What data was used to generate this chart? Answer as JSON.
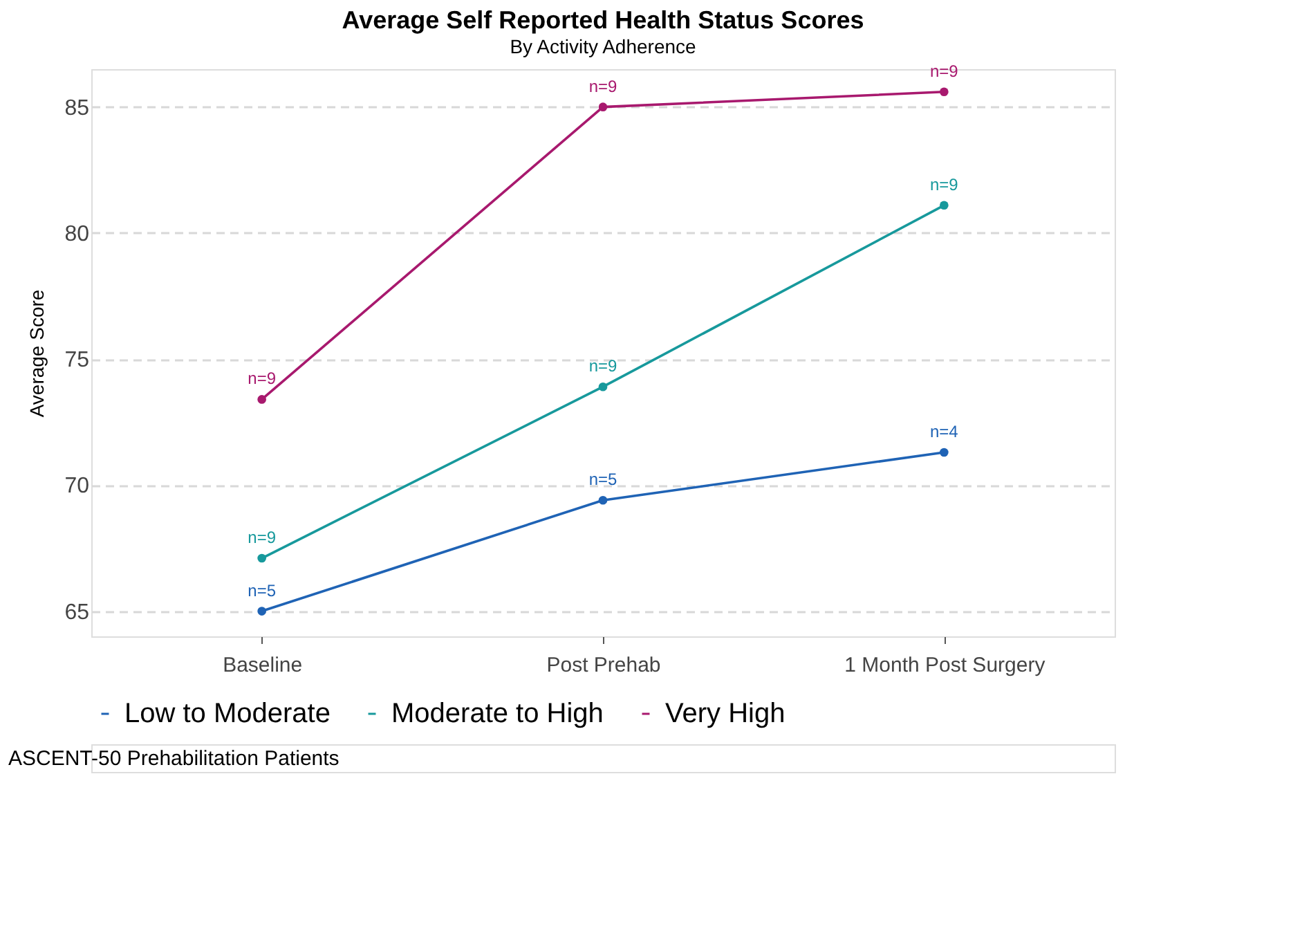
{
  "chart_data": {
    "type": "line",
    "title": "Average Self Reported Health Status Scores",
    "subtitle": "By Activity Adherence",
    "ylabel": "Average Score",
    "categories": [
      "Baseline",
      "Post Prehab",
      "1 Month Post Surgery"
    ],
    "series": [
      {
        "name": "Low to Moderate",
        "color": "#1f63b5",
        "values": [
          65.0,
          69.4,
          71.3
        ]
      },
      {
        "name": "Moderate to High",
        "color": "#17999c",
        "values": [
          67.1,
          73.9,
          81.1
        ]
      },
      {
        "name": "Very High",
        "color": "#a8196e",
        "values": [
          73.4,
          85.0,
          85.6
        ]
      }
    ],
    "ylim": [
      64,
      86.5
    ],
    "yticks": [
      65,
      70,
      75,
      80,
      85
    ],
    "grid": "y",
    "legend": "bottom",
    "marker": "circle",
    "line_style": "solid",
    "annotations": [
      {
        "text": "n=5",
        "x": "Baseline",
        "y": 65.0
      },
      {
        "text": "n=5",
        "x": "Post Prehab",
        "y": 69.4
      },
      {
        "text": "n=4",
        "x": "1 Month Post Surgery",
        "y": 71.3
      },
      {
        "text": "n=9",
        "x": "Baseline",
        "y": 67.1
      },
      {
        "text": "n=9",
        "x": "Post Prehab",
        "y": 73.9
      },
      {
        "text": "n=9",
        "x": "1 Month Post Surgery",
        "y": 81.1
      },
      {
        "text": "n=9",
        "x": "Baseline",
        "y": 73.4
      },
      {
        "text": "n=9",
        "x": "Post Prehab",
        "y": 85.0
      },
      {
        "text": "n=9",
        "x": "1 Month Post Surgery",
        "y": 85.6
      },
      "ASCENT-50 Prehabilitation Patients"
    ]
  }
}
